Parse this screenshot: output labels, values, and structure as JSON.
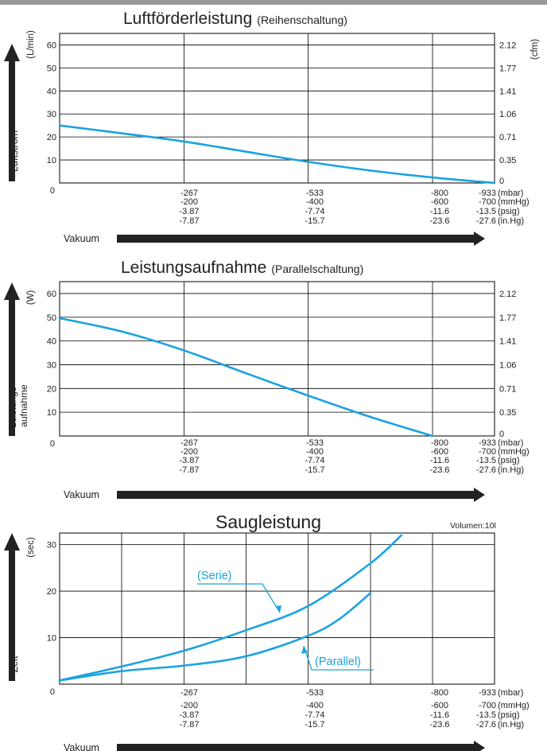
{
  "colors": {
    "curve": "#1aa3e0",
    "grid": "#000000",
    "arrow": "#222222",
    "text": "#222222"
  },
  "axis_words": {
    "vakuum": "Vakuum"
  },
  "chart_data": [
    {
      "type": "line",
      "title": "Luftförderleistung",
      "subtitle": "(Reihenschaltung)",
      "ylabel": "Luftstrom",
      "yunit_left": "(L/min)",
      "yunit_right": "(cfm)",
      "ylim": [
        0,
        65
      ],
      "left_ticks": [
        "60",
        "50",
        "40",
        "30",
        "20",
        "10"
      ],
      "right_ticks": [
        "2.12",
        "1.77",
        "1.41",
        "1.06",
        "0.71",
        "0.35",
        "0"
      ],
      "zero_label": "0",
      "xlim": [
        0,
        933
      ],
      "x_gridlines": [
        267,
        533,
        800
      ],
      "x_tick_columns": [
        [
          "-267",
          "-200",
          "-3.87",
          "-7.87"
        ],
        [
          "-533",
          "-400",
          "-7.74",
          "-15.7"
        ],
        [
          "-800",
          "-600",
          "-11.6",
          "-23.6"
        ]
      ],
      "x_end_values": [
        "-933",
        "-700",
        "-13.5",
        "-27.6"
      ],
      "x_units": [
        "(mbar)",
        "(mmHg)",
        "(psig)",
        "(in.Hg)"
      ],
      "xlabel": "Vakuum",
      "grid": true,
      "series": [
        {
          "x": [
            0,
            133,
            267,
            400,
            533,
            667,
            800,
            933
          ],
          "y": [
            25,
            21.6,
            18,
            13.6,
            9.2,
            5.4,
            2.4,
            0
          ]
        }
      ]
    },
    {
      "type": "line",
      "title": "Leistungsaufnahme",
      "subtitle": "(Parallelschaltung)",
      "ylabel_lines": [
        "Leistungs-",
        "aufnahme"
      ],
      "yunit_left": "(W)",
      "ylim": [
        0,
        65
      ],
      "left_ticks": [
        "60",
        "50",
        "40",
        "30",
        "20",
        "10"
      ],
      "right_ticks": [
        "2.12",
        "1.77",
        "1.41",
        "1.06",
        "0.71",
        "0.35",
        "0"
      ],
      "zero_label": "0",
      "xlim": [
        0,
        933
      ],
      "x_gridlines": [
        267,
        533,
        800
      ],
      "x_tick_columns": [
        [
          "-267",
          "-200",
          "-3.87",
          "-7.87"
        ],
        [
          "-533",
          "-400",
          "-7.74",
          "-15.7"
        ],
        [
          "-800",
          "-600",
          "-11.6",
          "-23.6"
        ]
      ],
      "x_end_values": [
        "-933",
        "-700",
        "-13.5",
        "-27.6"
      ],
      "x_units": [
        "(mbar)",
        "(mmHg)",
        "(psig)",
        "(in.Hg)"
      ],
      "xlabel": "Vakuum",
      "grid": true,
      "series": [
        {
          "x": [
            0,
            133,
            267,
            400,
            533,
            667,
            800
          ],
          "y": [
            49.6,
            44,
            36,
            26.4,
            17,
            8,
            0
          ]
        }
      ]
    },
    {
      "type": "line",
      "title": "Saugleistung",
      "note": "Volumen:10l",
      "ylabel": "Zeit",
      "yunit_left": "(sec)",
      "ylim": [
        0,
        32.5
      ],
      "left_ticks": [
        "30",
        "20",
        "10"
      ],
      "zero_label": "0",
      "xlim": [
        0,
        933
      ],
      "x_gridlines": [
        133,
        267,
        400,
        533,
        667,
        800
      ],
      "x_tick_columns": [
        [
          "-267",
          "-200",
          "-3.87",
          "-7.87"
        ],
        [
          "-533",
          "-400",
          "-7.74",
          "-15.7"
        ],
        [
          "-800",
          "-600",
          "-11.6",
          "-23.6"
        ]
      ],
      "x_end_values": [
        "-933",
        "-700",
        "-13.5",
        "-27.6"
      ],
      "x_units": [
        "(mbar)",
        "(mmHg)",
        "(psig)",
        "(in.Hg)"
      ],
      "xlabel": "Vakuum",
      "grid": true,
      "series": [
        {
          "name": "(Serie)",
          "x": [
            0,
            133,
            267,
            400,
            533,
            667,
            733
          ],
          "y": [
            0.8,
            3.8,
            7.2,
            11.6,
            16.8,
            26,
            32
          ]
        },
        {
          "name": "(Parallel)",
          "x": [
            0,
            133,
            267,
            400,
            533,
            600,
            667
          ],
          "y": [
            0.8,
            2.8,
            4,
            6,
            10.4,
            14,
            19.6
          ]
        }
      ]
    }
  ]
}
